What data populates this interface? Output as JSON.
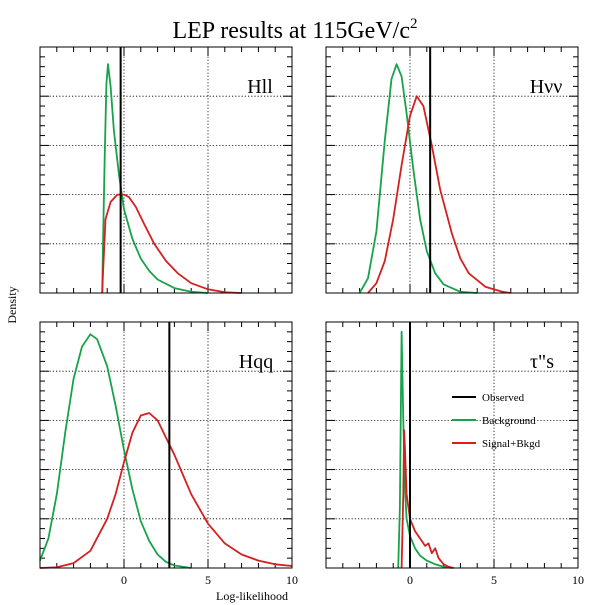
{
  "title": "LEP results at 115GeV/c",
  "title_superscript": "2",
  "ylabel": "Density",
  "xlabel": "Log-likelihood",
  "colors": {
    "observed": "#000000",
    "background": "#17a34a",
    "signal": "#d42020",
    "grid": "#000000"
  },
  "legend": {
    "placement": "inside bottom-right panel",
    "entries": [
      {
        "label": "Observed",
        "color": "#000000"
      },
      {
        "label": "Background",
        "color": "#17a34a"
      },
      {
        "label": "Signal+Bkgd",
        "color": "#d42020"
      }
    ]
  },
  "chart_data": [
    {
      "type": "line",
      "label": "Hll",
      "xlim": [
        -5,
        10
      ],
      "ylim": [
        0,
        1
      ],
      "grid": true,
      "x_ticks": [
        "0",
        "5",
        "10"
      ],
      "x_ticks_visible": false,
      "observed_x": -0.2,
      "series": [
        {
          "name": "Background",
          "color": "#17a34a",
          "points": [
            [
              -1.3,
              0
            ],
            [
              -1.25,
              0.2
            ],
            [
              -1.15,
              0.55
            ],
            [
              -1.05,
              0.85
            ],
            [
              -0.95,
              0.93
            ],
            [
              -0.8,
              0.84
            ],
            [
              -0.6,
              0.66
            ],
            [
              -0.3,
              0.48
            ],
            [
              0,
              0.34
            ],
            [
              0.5,
              0.22
            ],
            [
              1,
              0.14
            ],
            [
              1.5,
              0.09
            ],
            [
              2,
              0.055
            ],
            [
              3,
              0.02
            ],
            [
              4,
              0.005
            ],
            [
              5,
              0
            ]
          ]
        },
        {
          "name": "Signal+Bkgd",
          "color": "#d42020",
          "points": [
            [
              -1.3,
              0
            ],
            [
              -1.25,
              0.08
            ],
            [
              -1.1,
              0.3
            ],
            [
              -0.8,
              0.37
            ],
            [
              -0.4,
              0.4
            ],
            [
              0,
              0.4
            ],
            [
              0.3,
              0.39
            ],
            [
              0.7,
              0.35
            ],
            [
              1.2,
              0.28
            ],
            [
              1.8,
              0.2
            ],
            [
              2.5,
              0.13
            ],
            [
              3.2,
              0.08
            ],
            [
              4,
              0.04
            ],
            [
              5,
              0.015
            ],
            [
              6,
              0.003
            ],
            [
              7,
              0
            ]
          ]
        }
      ]
    },
    {
      "type": "line",
      "label": "Hνν",
      "xlim": [
        -5,
        10
      ],
      "ylim": [
        0,
        1
      ],
      "grid": true,
      "x_ticks": [
        "0",
        "5",
        "10"
      ],
      "x_ticks_visible": false,
      "observed_x": 1.2,
      "series": [
        {
          "name": "Background",
          "color": "#17a34a",
          "points": [
            [
              -3,
              0
            ],
            [
              -2.5,
              0.06
            ],
            [
              -2,
              0.25
            ],
            [
              -1.5,
              0.62
            ],
            [
              -1.1,
              0.87
            ],
            [
              -0.8,
              0.93
            ],
            [
              -0.5,
              0.88
            ],
            [
              -0.2,
              0.73
            ],
            [
              0.2,
              0.5
            ],
            [
              0.6,
              0.3
            ],
            [
              1,
              0.17
            ],
            [
              1.5,
              0.08
            ],
            [
              2,
              0.035
            ],
            [
              3,
              0.005
            ],
            [
              4,
              0
            ]
          ]
        },
        {
          "name": "Signal+Bkgd",
          "color": "#d42020",
          "points": [
            [
              -2.5,
              0
            ],
            [
              -2,
              0.04
            ],
            [
              -1.5,
              0.13
            ],
            [
              -1,
              0.3
            ],
            [
              -0.5,
              0.52
            ],
            [
              0,
              0.72
            ],
            [
              0.4,
              0.8
            ],
            [
              0.8,
              0.76
            ],
            [
              1.3,
              0.6
            ],
            [
              1.8,
              0.42
            ],
            [
              2.5,
              0.24
            ],
            [
              3,
              0.14
            ],
            [
              3.5,
              0.08
            ],
            [
              4.5,
              0.025
            ],
            [
              5.5,
              0.005
            ],
            [
              6,
              0
            ]
          ]
        }
      ]
    },
    {
      "type": "line",
      "label": "Hqq",
      "xlim": [
        -5,
        10
      ],
      "ylim": [
        0,
        1
      ],
      "grid": true,
      "x_ticks": [
        "0",
        "5",
        "10"
      ],
      "x_ticks_visible": true,
      "observed_x": 2.7,
      "series": [
        {
          "name": "Background",
          "color": "#17a34a",
          "points": [
            [
              -5,
              0.03
            ],
            [
              -4.5,
              0.12
            ],
            [
              -4,
              0.3
            ],
            [
              -3.5,
              0.55
            ],
            [
              -3,
              0.77
            ],
            [
              -2.5,
              0.9
            ],
            [
              -2,
              0.95
            ],
            [
              -1.6,
              0.93
            ],
            [
              -1,
              0.82
            ],
            [
              -0.5,
              0.66
            ],
            [
              0,
              0.48
            ],
            [
              0.5,
              0.32
            ],
            [
              1,
              0.19
            ],
            [
              1.5,
              0.11
            ],
            [
              2,
              0.055
            ],
            [
              2.5,
              0.025
            ],
            [
              3,
              0.01
            ],
            [
              4,
              0
            ]
          ]
        },
        {
          "name": "Signal+Bkgd",
          "color": "#d42020",
          "points": [
            [
              -5,
              0
            ],
            [
              -4,
              0.003
            ],
            [
              -3,
              0.02
            ],
            [
              -2,
              0.07
            ],
            [
              -1,
              0.2
            ],
            [
              -0.5,
              0.3
            ],
            [
              0,
              0.43
            ],
            [
              0.5,
              0.55
            ],
            [
              1,
              0.62
            ],
            [
              1.5,
              0.63
            ],
            [
              2,
              0.6
            ],
            [
              2.5,
              0.53
            ],
            [
              3,
              0.46
            ],
            [
              3.5,
              0.38
            ],
            [
              4,
              0.3
            ],
            [
              5,
              0.18
            ],
            [
              6,
              0.1
            ],
            [
              7,
              0.055
            ],
            [
              8,
              0.03
            ],
            [
              9,
              0.015
            ],
            [
              10,
              0.008
            ]
          ]
        }
      ]
    },
    {
      "type": "line",
      "label": "τ\"s",
      "xlim": [
        -5,
        10
      ],
      "ylim": [
        0,
        1
      ],
      "grid": true,
      "x_ticks": [
        "0",
        "5",
        "10"
      ],
      "x_ticks_visible": true,
      "observed_x": 0,
      "series": [
        {
          "name": "Background",
          "color": "#17a34a",
          "points": [
            [
              -0.7,
              0
            ],
            [
              -0.6,
              0.25
            ],
            [
              -0.5,
              0.96
            ],
            [
              -0.4,
              0.6
            ],
            [
              -0.3,
              0.32
            ],
            [
              -0.2,
              0.2
            ],
            [
              0,
              0.13
            ],
            [
              0.3,
              0.08
            ],
            [
              0.6,
              0.05
            ],
            [
              1,
              0.03
            ],
            [
              1.5,
              0.015
            ],
            [
              2,
              0.005
            ],
            [
              2.5,
              0
            ]
          ]
        },
        {
          "name": "Signal+Bkgd",
          "color": "#d42020",
          "points": [
            [
              -0.5,
              0
            ],
            [
              -0.4,
              0.3
            ],
            [
              -0.35,
              0.56
            ],
            [
              -0.3,
              0.48
            ],
            [
              -0.2,
              0.3
            ],
            [
              0,
              0.2
            ],
            [
              0.3,
              0.15
            ],
            [
              0.6,
              0.12
            ],
            [
              0.9,
              0.09
            ],
            [
              1.1,
              0.1
            ],
            [
              1.3,
              0.06
            ],
            [
              1.5,
              0.08
            ],
            [
              1.7,
              0.04
            ],
            [
              2,
              0.015
            ],
            [
              2.3,
              0.005
            ],
            [
              2.6,
              0
            ]
          ]
        }
      ]
    }
  ]
}
